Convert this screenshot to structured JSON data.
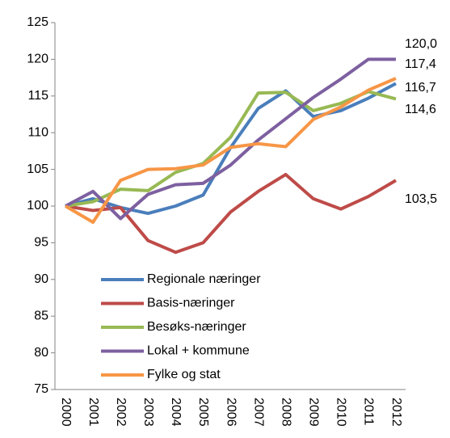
{
  "chart_data": {
    "type": "line",
    "categories": [
      "2000",
      "2001",
      "2002",
      "2003",
      "2004",
      "2005",
      "2006",
      "2007",
      "2008",
      "2009",
      "2010",
      "2011",
      "2012"
    ],
    "series": [
      {
        "name": "Regionale næringer",
        "color": "#4a7ebb",
        "values": [
          100,
          101,
          99.8,
          99,
          100,
          101.5,
          108,
          113.3,
          115.7,
          112.2,
          113,
          114.7,
          116.7
        ],
        "value_labels": [
          null,
          null,
          null,
          null,
          null,
          null,
          null,
          null,
          null,
          null,
          null,
          null,
          "116,7"
        ]
      },
      {
        "name": "Basis-næringer",
        "color": "#be4b48",
        "values": [
          100,
          99.4,
          99.8,
          95.3,
          93.7,
          95,
          99.2,
          102,
          104.3,
          101,
          99.6,
          101.3,
          103.5
        ],
        "value_labels": [
          null,
          null,
          null,
          null,
          null,
          null,
          null,
          null,
          null,
          null,
          null,
          null,
          "103,5"
        ]
      },
      {
        "name": "Besøks-næringer",
        "color": "#98b954",
        "values": [
          100,
          100.6,
          102.3,
          102.1,
          104.6,
          105.8,
          109.4,
          115.4,
          115.5,
          113,
          114,
          115.6,
          114.6
        ],
        "value_labels": [
          null,
          null,
          null,
          null,
          null,
          null,
          null,
          null,
          null,
          null,
          null,
          null,
          "114,6"
        ]
      },
      {
        "name": "Lokal + kommune",
        "color": "#7d60a0",
        "values": [
          100,
          102,
          98.3,
          101.6,
          102.9,
          103.1,
          105.6,
          109,
          111.9,
          114.8,
          117.3,
          120,
          120.0
        ],
        "value_labels": [
          null,
          null,
          null,
          null,
          null,
          null,
          null,
          null,
          null,
          null,
          null,
          null,
          "120,0"
        ]
      },
      {
        "name": "Fylke og stat",
        "color": "#f79646",
        "values": [
          100,
          97.8,
          103.5,
          105,
          105.1,
          105.6,
          108,
          108.5,
          108.1,
          111.8,
          113.5,
          115.8,
          117.4
        ],
        "value_labels": [
          null,
          null,
          null,
          null,
          null,
          null,
          null,
          null,
          null,
          null,
          null,
          null,
          "117,4"
        ]
      }
    ],
    "ylim": [
      75,
      125
    ],
    "yticks": [
      75,
      80,
      85,
      90,
      95,
      100,
      105,
      110,
      115,
      120,
      125
    ],
    "grid": false,
    "legend": "lower left"
  }
}
